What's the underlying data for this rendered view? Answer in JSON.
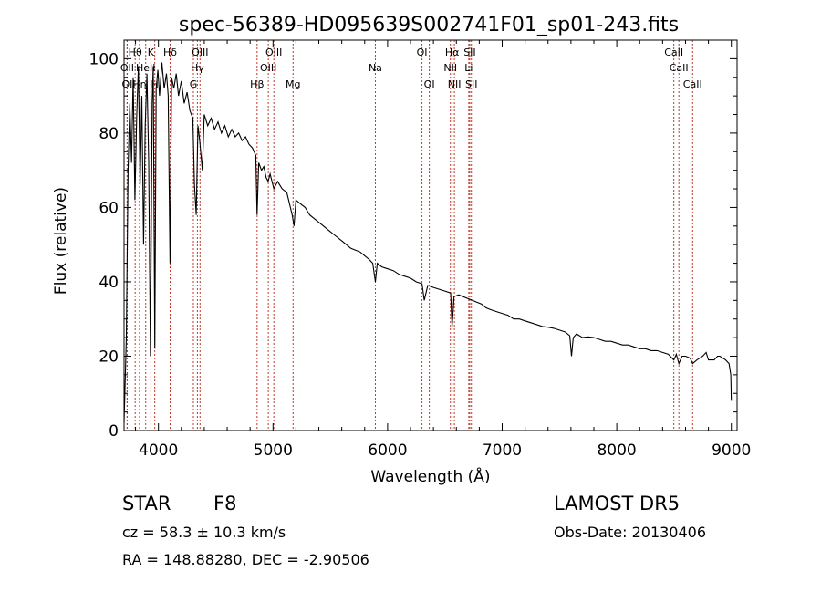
{
  "chart_data": {
    "type": "line",
    "title": "spec-56389-HD095639S002741F01_sp01-243.fits",
    "xlabel": "Wavelength (Å)",
    "ylabel": "Flux (relative)",
    "xlim": [
      3700,
      9050
    ],
    "ylim": [
      0,
      105
    ],
    "x_ticks": [
      4000,
      5000,
      6000,
      7000,
      8000,
      9000
    ],
    "y_ticks": [
      0,
      20,
      40,
      60,
      80,
      100
    ],
    "grid": false,
    "series": [
      {
        "color": "#000000",
        "points": [
          [
            3700,
            2
          ],
          [
            3720,
            25
          ],
          [
            3735,
            70
          ],
          [
            3750,
            88
          ],
          [
            3765,
            72
          ],
          [
            3780,
            95
          ],
          [
            3795,
            62
          ],
          [
            3810,
            84
          ],
          [
            3825,
            98
          ],
          [
            3840,
            66
          ],
          [
            3855,
            90
          ],
          [
            3870,
            50
          ],
          [
            3885,
            82
          ],
          [
            3900,
            96
          ],
          [
            3915,
            72
          ],
          [
            3930,
            20
          ],
          [
            3945,
            88
          ],
          [
            3955,
            98
          ],
          [
            3968,
            22
          ],
          [
            3980,
            92
          ],
          [
            3995,
            97
          ],
          [
            4010,
            90
          ],
          [
            4030,
            99
          ],
          [
            4050,
            92
          ],
          [
            4070,
            96
          ],
          [
            4085,
            90
          ],
          [
            4101,
            45
          ],
          [
            4115,
            95
          ],
          [
            4135,
            92
          ],
          [
            4155,
            96
          ],
          [
            4175,
            90
          ],
          [
            4200,
            94
          ],
          [
            4225,
            88
          ],
          [
            4250,
            91
          ],
          [
            4275,
            86
          ],
          [
            4300,
            84
          ],
          [
            4315,
            66
          ],
          [
            4330,
            58
          ],
          [
            4345,
            82
          ],
          [
            4360,
            78
          ],
          [
            4383,
            70
          ],
          [
            4400,
            85
          ],
          [
            4430,
            82
          ],
          [
            4460,
            84
          ],
          [
            4490,
            81
          ],
          [
            4520,
            83
          ],
          [
            4550,
            80
          ],
          [
            4580,
            82
          ],
          [
            4610,
            79
          ],
          [
            4640,
            81
          ],
          [
            4670,
            79
          ],
          [
            4700,
            80
          ],
          [
            4730,
            78
          ],
          [
            4760,
            79
          ],
          [
            4790,
            77
          ],
          [
            4820,
            76
          ],
          [
            4850,
            74
          ],
          [
            4861,
            58
          ],
          [
            4875,
            72
          ],
          [
            4900,
            70
          ],
          [
            4920,
            71
          ],
          [
            4940,
            68
          ],
          [
            4957,
            67
          ],
          [
            4975,
            69
          ],
          [
            5007,
            65
          ],
          [
            5040,
            67
          ],
          [
            5080,
            65
          ],
          [
            5120,
            64
          ],
          [
            5167,
            58
          ],
          [
            5183,
            55
          ],
          [
            5200,
            62
          ],
          [
            5240,
            61
          ],
          [
            5280,
            60
          ],
          [
            5320,
            58
          ],
          [
            5360,
            57
          ],
          [
            5400,
            56
          ],
          [
            5440,
            55
          ],
          [
            5480,
            54
          ],
          [
            5520,
            53
          ],
          [
            5560,
            52
          ],
          [
            5600,
            51
          ],
          [
            5640,
            50
          ],
          [
            5680,
            49
          ],
          [
            5720,
            48.5
          ],
          [
            5760,
            48
          ],
          [
            5800,
            47
          ],
          [
            5840,
            46
          ],
          [
            5870,
            45
          ],
          [
            5893,
            40
          ],
          [
            5910,
            45
          ],
          [
            5950,
            44
          ],
          [
            6000,
            43.5
          ],
          [
            6050,
            43
          ],
          [
            6100,
            42
          ],
          [
            6150,
            41.5
          ],
          [
            6200,
            41
          ],
          [
            6250,
            40
          ],
          [
            6300,
            39.5
          ],
          [
            6320,
            35
          ],
          [
            6350,
            39
          ],
          [
            6400,
            38.5
          ],
          [
            6450,
            38
          ],
          [
            6500,
            37.5
          ],
          [
            6550,
            37
          ],
          [
            6563,
            28
          ],
          [
            6580,
            36
          ],
          [
            6620,
            36.5
          ],
          [
            6660,
            36
          ],
          [
            6700,
            35.5
          ],
          [
            6740,
            35
          ],
          [
            6780,
            34.5
          ],
          [
            6820,
            34
          ],
          [
            6860,
            33
          ],
          [
            6900,
            32.5
          ],
          [
            6950,
            32
          ],
          [
            7000,
            31.5
          ],
          [
            7050,
            31
          ],
          [
            7100,
            30
          ],
          [
            7150,
            30
          ],
          [
            7200,
            29.5
          ],
          [
            7250,
            29
          ],
          [
            7300,
            28.5
          ],
          [
            7350,
            28
          ],
          [
            7400,
            27.8
          ],
          [
            7450,
            27.5
          ],
          [
            7500,
            27
          ],
          [
            7550,
            26.5
          ],
          [
            7590,
            25.5
          ],
          [
            7605,
            20
          ],
          [
            7620,
            25
          ],
          [
            7650,
            26
          ],
          [
            7700,
            25
          ],
          [
            7750,
            25.2
          ],
          [
            7800,
            25
          ],
          [
            7850,
            24.5
          ],
          [
            7900,
            24
          ],
          [
            7950,
            24
          ],
          [
            8000,
            23.5
          ],
          [
            8050,
            23
          ],
          [
            8100,
            23
          ],
          [
            8150,
            22.5
          ],
          [
            8200,
            22
          ],
          [
            8250,
            22
          ],
          [
            8300,
            21.5
          ],
          [
            8350,
            21.5
          ],
          [
            8400,
            21
          ],
          [
            8450,
            20.5
          ],
          [
            8498,
            19
          ],
          [
            8520,
            20.5
          ],
          [
            8542,
            18
          ],
          [
            8570,
            20
          ],
          [
            8600,
            20
          ],
          [
            8640,
            19.5
          ],
          [
            8662,
            18
          ],
          [
            8700,
            19
          ],
          [
            8750,
            20
          ],
          [
            8780,
            21
          ],
          [
            8800,
            19
          ],
          [
            8850,
            19
          ],
          [
            8880,
            20
          ],
          [
            8900,
            20
          ],
          [
            8950,
            19
          ],
          [
            8980,
            18
          ],
          [
            8995,
            15
          ],
          [
            9000,
            8
          ]
        ]
      }
    ],
    "lines": [
      {
        "label": "Hθ",
        "x": 3797,
        "row": 0
      },
      {
        "label": "K",
        "x": 3934,
        "row": 0
      },
      {
        "label": "Hδ",
        "x": 4102,
        "row": 0
      },
      {
        "label": "OIII",
        "x": 4363,
        "row": 0
      },
      {
        "label": "OIII",
        "x": 5007,
        "row": 0
      },
      {
        "label": "OI",
        "x": 6300,
        "row": 0
      },
      {
        "label": "Hα",
        "x": 6563,
        "row": 0
      },
      {
        "label": "SII",
        "x": 6717,
        "row": 0
      },
      {
        "label": "CaII",
        "x": 8498,
        "row": 0
      },
      {
        "label": "OII",
        "x": 3727,
        "row": 1
      },
      {
        "label": "HeII",
        "x": 3889,
        "row": 1
      },
      {
        "label": "Hγ",
        "x": 4340,
        "row": 1
      },
      {
        "label": "OIII",
        "x": 4959,
        "row": 1
      },
      {
        "label": "Na",
        "x": 5893,
        "row": 1
      },
      {
        "label": "NII",
        "x": 6548,
        "row": 1
      },
      {
        "label": "Li",
        "x": 6708,
        "row": 1
      },
      {
        "label": "CaII",
        "x": 8542,
        "row": 1
      },
      {
        "label": "OI",
        "x": 3727,
        "row": 2
      },
      {
        "label": "Hη",
        "x": 3835,
        "row": 2
      },
      {
        "label": "H",
        "x": 3968,
        "row": 2
      },
      {
        "label": "G",
        "x": 4305,
        "row": 2
      },
      {
        "label": "Hβ",
        "x": 4861,
        "row": 2
      },
      {
        "label": "Mg",
        "x": 5175,
        "row": 2
      },
      {
        "label": "OI",
        "x": 6364,
        "row": 2
      },
      {
        "label": "NII",
        "x": 6583,
        "row": 2
      },
      {
        "label": "SII",
        "x": 6731,
        "row": 2
      },
      {
        "label": "CaII",
        "x": 8662,
        "row": 2
      }
    ]
  },
  "info": {
    "object_class": "STAR",
    "subclass": "F8",
    "survey": "LAMOST DR5",
    "redshift": "cz = 58.3 ± 10.3 km/s",
    "obs_date": "Obs-Date: 20130406",
    "coords": "RA = 148.88280, DEC =  -2.90506"
  }
}
